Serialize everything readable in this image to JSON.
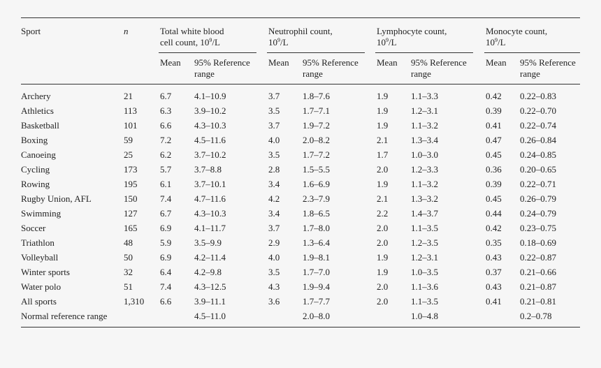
{
  "columns": {
    "sport": "Sport",
    "n": "n",
    "wbc": {
      "line1": "Total white blood",
      "line2": "cell count, 10",
      "sup": "9",
      "unit": "/L"
    },
    "neut": {
      "line1": "Neutrophil count,",
      "line2": "10",
      "sup": "9",
      "unit": "/L"
    },
    "lymph": {
      "line1": "Lymphocyte count,",
      "line2": "10",
      "sup": "9",
      "unit": "/L"
    },
    "mono": {
      "line1": "Monocyte count,",
      "line2": "10",
      "sup": "9",
      "unit": "/L"
    }
  },
  "sub": {
    "mean": "Mean",
    "ref1": "95% Reference",
    "ref2": "range"
  },
  "rows": [
    {
      "sport": "Archery",
      "n": "21",
      "wbc_mean": "6.7",
      "wbc_range": "4.1–10.9",
      "neut_mean": "3.7",
      "neut_range": "1.8–7.6",
      "lymph_mean": "1.9",
      "lymph_range": "1.1–3.3",
      "mono_mean": "0.42",
      "mono_range": "0.22–0.83"
    },
    {
      "sport": "Athletics",
      "n": "113",
      "wbc_mean": "6.3",
      "wbc_range": "3.9–10.2",
      "neut_mean": "3.5",
      "neut_range": "1.7–7.1",
      "lymph_mean": "1.9",
      "lymph_range": "1.2–3.1",
      "mono_mean": "0.39",
      "mono_range": "0.22–0.70"
    },
    {
      "sport": "Basketball",
      "n": "101",
      "wbc_mean": "6.6",
      "wbc_range": "4.3–10.3",
      "neut_mean": "3.7",
      "neut_range": "1.9–7.2",
      "lymph_mean": "1.9",
      "lymph_range": "1.1–3.2",
      "mono_mean": "0.41",
      "mono_range": "0.22–0.74"
    },
    {
      "sport": "Boxing",
      "n": "59",
      "wbc_mean": "7.2",
      "wbc_range": "4.5–11.6",
      "neut_mean": "4.0",
      "neut_range": "2.0–8.2",
      "lymph_mean": "2.1",
      "lymph_range": "1.3–3.4",
      "mono_mean": "0.47",
      "mono_range": "0.26–0.84"
    },
    {
      "sport": "Canoeing",
      "n": "25",
      "wbc_mean": "6.2",
      "wbc_range": "3.7–10.2",
      "neut_mean": "3.5",
      "neut_range": "1.7–7.2",
      "lymph_mean": "1.7",
      "lymph_range": "1.0–3.0",
      "mono_mean": "0.45",
      "mono_range": "0.24–0.85"
    },
    {
      "sport": "Cycling",
      "n": "173",
      "wbc_mean": "5.7",
      "wbc_range": "3.7–8.8",
      "neut_mean": "2.8",
      "neut_range": "1.5–5.5",
      "lymph_mean": "2.0",
      "lymph_range": "1.2–3.3",
      "mono_mean": "0.36",
      "mono_range": "0.20–0.65"
    },
    {
      "sport": "Rowing",
      "n": "195",
      "wbc_mean": "6.1",
      "wbc_range": "3.7–10.1",
      "neut_mean": "3.4",
      "neut_range": "1.6–6.9",
      "lymph_mean": "1.9",
      "lymph_range": "1.1–3.2",
      "mono_mean": "0.39",
      "mono_range": "0.22–0.71"
    },
    {
      "sport": "Rugby Union, AFL",
      "n": "150",
      "wbc_mean": "7.4",
      "wbc_range": "4.7–11.6",
      "neut_mean": "4.2",
      "neut_range": "2.3–7.9",
      "lymph_mean": "2.1",
      "lymph_range": "1.3–3.2",
      "mono_mean": "0.45",
      "mono_range": "0.26–0.79"
    },
    {
      "sport": "Swimming",
      "n": "127",
      "wbc_mean": "6.7",
      "wbc_range": "4.3–10.3",
      "neut_mean": "3.4",
      "neut_range": "1.8–6.5",
      "lymph_mean": "2.2",
      "lymph_range": "1.4–3.7",
      "mono_mean": "0.44",
      "mono_range": "0.24–0.79"
    },
    {
      "sport": "Soccer",
      "n": "165",
      "wbc_mean": "6.9",
      "wbc_range": "4.1–11.7",
      "neut_mean": "3.7",
      "neut_range": "1.7–8.0",
      "lymph_mean": "2.0",
      "lymph_range": "1.1–3.5",
      "mono_mean": "0.42",
      "mono_range": "0.23–0.75"
    },
    {
      "sport": "Triathlon",
      "n": "48",
      "wbc_mean": "5.9",
      "wbc_range": "3.5–9.9",
      "neut_mean": "2.9",
      "neut_range": "1.3–6.4",
      "lymph_mean": "2.0",
      "lymph_range": "1.2–3.5",
      "mono_mean": "0.35",
      "mono_range": "0.18–0.69"
    },
    {
      "sport": "Volleyball",
      "n": "50",
      "wbc_mean": "6.9",
      "wbc_range": "4.2–11.4",
      "neut_mean": "4.0",
      "neut_range": "1.9–8.1",
      "lymph_mean": "1.9",
      "lymph_range": "1.2–3.1",
      "mono_mean": "0.43",
      "mono_range": "0.22–0.87"
    },
    {
      "sport": "Winter sports",
      "n": "32",
      "wbc_mean": "6.4",
      "wbc_range": "4.2–9.8",
      "neut_mean": "3.5",
      "neut_range": "1.7–7.0",
      "lymph_mean": "1.9",
      "lymph_range": "1.0–3.5",
      "mono_mean": "0.37",
      "mono_range": "0.21–0.66"
    },
    {
      "sport": "Water polo",
      "n": "51",
      "wbc_mean": "7.4",
      "wbc_range": "4.3–12.5",
      "neut_mean": "4.3",
      "neut_range": "1.9–9.4",
      "lymph_mean": "2.0",
      "lymph_range": "1.1–3.6",
      "mono_mean": "0.43",
      "mono_range": "0.21–0.87"
    },
    {
      "sport": "All sports",
      "n": "1,310",
      "wbc_mean": "6.6",
      "wbc_range": "3.9–11.1",
      "neut_mean": "3.6",
      "neut_range": "1.7–7.7",
      "lymph_mean": "2.0",
      "lymph_range": "1.1–3.5",
      "mono_mean": "0.41",
      "mono_range": "0.21–0.81"
    },
    {
      "sport": "Normal reference range",
      "n": "",
      "wbc_mean": "",
      "wbc_range": "4.5–11.0",
      "neut_mean": "",
      "neut_range": "2.0–8.0",
      "lymph_mean": "",
      "lymph_range": "1.0–4.8",
      "mono_mean": "",
      "mono_range": "0.2–0.78"
    }
  ]
}
